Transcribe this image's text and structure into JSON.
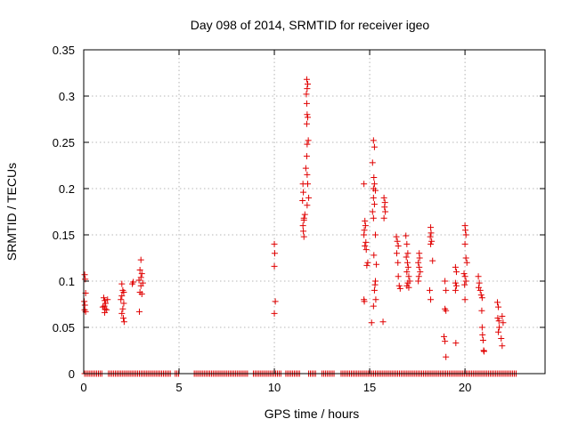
{
  "chart_data": {
    "type": "scatter",
    "title": "Day 098 of 2014, SRMTID for receiver igeo",
    "xlabel": "GPS time / hours",
    "ylabel": "SRMTID / TECUs",
    "xlim": [
      0,
      24.2
    ],
    "ylim": [
      0,
      0.35
    ],
    "x_ticks": [
      0,
      5,
      10,
      15,
      20
    ],
    "x_tick_labels": [
      "0",
      "5",
      "10",
      "15",
      "20"
    ],
    "y_ticks": [
      0,
      0.05,
      0.1,
      0.15,
      0.2,
      0.25,
      0.3,
      0.35
    ],
    "y_tick_labels": [
      "0",
      "0.05",
      "0.1",
      "0.15",
      "0.2",
      "0.25",
      "0.3",
      "0.35"
    ],
    "grid": true,
    "marker": "+",
    "color": "#e00000",
    "series": [
      {
        "name": "SRMTID",
        "points": [
          [
            0.05,
            0.107
          ],
          [
            0.08,
            0.102
          ],
          [
            0.1,
            0.087
          ],
          [
            0.03,
            0.078
          ],
          [
            0.06,
            0.074
          ],
          [
            0.05,
            0.069
          ],
          [
            0.1,
            0.067
          ],
          [
            1.05,
            0.082
          ],
          [
            1.1,
            0.079
          ],
          [
            1.15,
            0.076
          ],
          [
            1.08,
            0.073
          ],
          [
            1.12,
            0.07
          ],
          [
            1.2,
            0.069
          ],
          [
            1.1,
            0.066
          ],
          [
            1.25,
            0.08
          ],
          [
            1.0,
            0.072
          ],
          [
            2.0,
            0.097
          ],
          [
            2.05,
            0.09
          ],
          [
            2.1,
            0.088
          ],
          [
            2.0,
            0.084
          ],
          [
            1.95,
            0.08
          ],
          [
            2.1,
            0.076
          ],
          [
            2.05,
            0.07
          ],
          [
            2.0,
            0.065
          ],
          [
            2.08,
            0.06
          ],
          [
            2.12,
            0.056
          ],
          [
            2.6,
            0.099
          ],
          [
            2.55,
            0.097
          ],
          [
            3.0,
            0.123
          ],
          [
            2.95,
            0.112
          ],
          [
            3.05,
            0.108
          ],
          [
            3.0,
            0.104
          ],
          [
            2.9,
            0.101
          ],
          [
            3.1,
            0.098
          ],
          [
            3.0,
            0.095
          ],
          [
            2.95,
            0.088
          ],
          [
            3.05,
            0.086
          ],
          [
            2.92,
            0.067
          ],
          [
            10.0,
            0.14
          ],
          [
            10.02,
            0.13
          ],
          [
            10.0,
            0.116
          ],
          [
            10.05,
            0.078
          ],
          [
            10.0,
            0.065
          ],
          [
            11.5,
            0.205
          ],
          [
            11.52,
            0.196
          ],
          [
            11.48,
            0.187
          ],
          [
            11.55,
            0.166
          ],
          [
            11.5,
            0.16
          ],
          [
            11.52,
            0.154
          ],
          [
            11.55,
            0.148
          ],
          [
            11.7,
            0.318
          ],
          [
            11.75,
            0.313
          ],
          [
            11.72,
            0.308
          ],
          [
            11.68,
            0.302
          ],
          [
            11.7,
            0.292
          ],
          [
            11.72,
            0.28
          ],
          [
            11.75,
            0.277
          ],
          [
            11.7,
            0.27
          ],
          [
            11.78,
            0.252
          ],
          [
            11.72,
            0.248
          ],
          [
            11.7,
            0.235
          ],
          [
            11.65,
            0.222
          ],
          [
            11.72,
            0.215
          ],
          [
            11.75,
            0.205
          ],
          [
            11.8,
            0.19
          ],
          [
            11.72,
            0.182
          ],
          [
            11.6,
            0.172
          ],
          [
            11.55,
            0.168
          ],
          [
            14.7,
            0.205
          ],
          [
            14.75,
            0.165
          ],
          [
            14.78,
            0.16
          ],
          [
            14.72,
            0.155
          ],
          [
            14.7,
            0.15
          ],
          [
            14.8,
            0.142
          ],
          [
            14.75,
            0.138
          ],
          [
            14.82,
            0.134
          ],
          [
            14.9,
            0.12
          ],
          [
            14.85,
            0.117
          ],
          [
            14.7,
            0.08
          ],
          [
            14.72,
            0.078
          ],
          [
            15.2,
            0.252
          ],
          [
            15.25,
            0.245
          ],
          [
            15.15,
            0.228
          ],
          [
            15.22,
            0.212
          ],
          [
            15.25,
            0.205
          ],
          [
            15.2,
            0.2
          ],
          [
            15.3,
            0.198
          ],
          [
            15.2,
            0.19
          ],
          [
            15.25,
            0.183
          ],
          [
            15.15,
            0.175
          ],
          [
            15.2,
            0.168
          ],
          [
            15.3,
            0.15
          ],
          [
            15.22,
            0.128
          ],
          [
            15.35,
            0.118
          ],
          [
            15.3,
            0.1
          ],
          [
            15.28,
            0.096
          ],
          [
            15.25,
            0.09
          ],
          [
            15.32,
            0.08
          ],
          [
            15.2,
            0.073
          ],
          [
            15.1,
            0.055
          ],
          [
            15.75,
            0.19
          ],
          [
            15.8,
            0.185
          ],
          [
            15.78,
            0.18
          ],
          [
            15.82,
            0.175
          ],
          [
            15.75,
            0.168
          ],
          [
            15.7,
            0.056
          ],
          [
            16.4,
            0.148
          ],
          [
            16.45,
            0.143
          ],
          [
            16.5,
            0.138
          ],
          [
            16.42,
            0.13
          ],
          [
            16.48,
            0.12
          ],
          [
            16.5,
            0.105
          ],
          [
            16.55,
            0.095
          ],
          [
            16.6,
            0.092
          ],
          [
            16.9,
            0.149
          ],
          [
            16.95,
            0.14
          ],
          [
            17.0,
            0.13
          ],
          [
            16.92,
            0.126
          ],
          [
            16.98,
            0.12
          ],
          [
            17.02,
            0.115
          ],
          [
            16.95,
            0.11
          ],
          [
            17.05,
            0.105
          ],
          [
            17.1,
            0.1
          ],
          [
            17.0,
            0.098
          ],
          [
            16.95,
            0.095
          ],
          [
            17.05,
            0.093
          ],
          [
            17.6,
            0.13
          ],
          [
            17.62,
            0.125
          ],
          [
            17.55,
            0.12
          ],
          [
            17.6,
            0.115
          ],
          [
            17.65,
            0.11
          ],
          [
            17.58,
            0.105
          ],
          [
            17.55,
            0.1
          ],
          [
            18.2,
            0.158
          ],
          [
            18.22,
            0.152
          ],
          [
            18.18,
            0.148
          ],
          [
            18.25,
            0.143
          ],
          [
            18.2,
            0.14
          ],
          [
            18.3,
            0.122
          ],
          [
            18.15,
            0.09
          ],
          [
            18.2,
            0.08
          ],
          [
            18.95,
            0.1
          ],
          [
            19.0,
            0.09
          ],
          [
            18.95,
            0.07
          ],
          [
            19.0,
            0.068
          ],
          [
            18.9,
            0.04
          ],
          [
            18.95,
            0.035
          ],
          [
            19.0,
            0.018
          ],
          [
            19.5,
            0.115
          ],
          [
            19.55,
            0.11
          ],
          [
            19.5,
            0.098
          ],
          [
            19.55,
            0.095
          ],
          [
            19.5,
            0.09
          ],
          [
            19.52,
            0.033
          ],
          [
            20.0,
            0.16
          ],
          [
            20.02,
            0.155
          ],
          [
            20.05,
            0.15
          ],
          [
            20.0,
            0.14
          ],
          [
            20.05,
            0.125
          ],
          [
            20.1,
            0.12
          ],
          [
            19.95,
            0.108
          ],
          [
            20.0,
            0.105
          ],
          [
            20.05,
            0.1
          ],
          [
            19.98,
            0.096
          ],
          [
            20.0,
            0.08
          ],
          [
            20.7,
            0.105
          ],
          [
            20.75,
            0.098
          ],
          [
            20.72,
            0.093
          ],
          [
            20.8,
            0.09
          ],
          [
            20.85,
            0.085
          ],
          [
            20.9,
            0.082
          ],
          [
            20.88,
            0.068
          ],
          [
            20.9,
            0.05
          ],
          [
            20.92,
            0.042
          ],
          [
            20.95,
            0.036
          ],
          [
            20.98,
            0.025
          ],
          [
            21.0,
            0.024
          ],
          [
            21.7,
            0.077
          ],
          [
            21.75,
            0.072
          ],
          [
            21.72,
            0.06
          ],
          [
            21.78,
            0.057
          ],
          [
            21.8,
            0.05
          ],
          [
            21.75,
            0.045
          ],
          [
            21.95,
            0.062
          ],
          [
            22.0,
            0.055
          ],
          [
            21.9,
            0.038
          ],
          [
            21.95,
            0.03
          ]
        ],
        "zero_intervals": [
          [
            0.05,
            1.0
          ],
          [
            1.3,
            4.6
          ],
          [
            4.8,
            5.0
          ],
          [
            5.8,
            8.6
          ],
          [
            8.9,
            10.4
          ],
          [
            10.6,
            11.4
          ],
          [
            11.8,
            12.2
          ],
          [
            12.5,
            13.2
          ],
          [
            13.5,
            22.7
          ]
        ]
      }
    ]
  }
}
